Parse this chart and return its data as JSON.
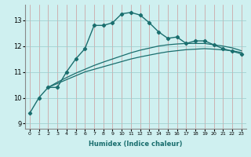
{
  "xlabel": "Humidex (Indice chaleur)",
  "ylabel": "",
  "background_color": "#cff0f0",
  "grid_color": "#99cccc",
  "line_color": "#1a6e6e",
  "xlim": [
    -0.5,
    23.5
  ],
  "ylim": [
    8.8,
    13.6
  ],
  "yticks": [
    9,
    10,
    11,
    12,
    13
  ],
  "xticks": [
    0,
    1,
    2,
    3,
    4,
    5,
    6,
    7,
    8,
    9,
    10,
    11,
    12,
    13,
    14,
    15,
    16,
    17,
    18,
    19,
    20,
    21,
    22,
    23
  ],
  "series1_x": [
    0,
    1,
    2,
    3,
    4,
    5,
    6,
    7,
    8,
    9,
    10,
    11,
    12,
    13,
    14,
    15,
    16,
    17,
    18,
    19,
    20,
    21,
    22,
    23
  ],
  "series1_y": [
    9.4,
    10.0,
    10.4,
    10.4,
    11.0,
    11.5,
    11.9,
    12.8,
    12.8,
    12.9,
    13.25,
    13.3,
    13.2,
    12.9,
    12.55,
    12.3,
    12.35,
    12.1,
    12.2,
    12.2,
    12.05,
    11.9,
    11.8,
    11.7
  ],
  "series2_x": [
    2,
    3,
    4,
    5,
    6,
    7,
    8,
    9,
    10,
    11,
    12,
    13,
    14,
    15,
    16,
    17,
    18,
    19,
    20,
    21,
    22,
    23
  ],
  "series2_y": [
    10.4,
    10.55,
    10.7,
    10.85,
    11.0,
    11.1,
    11.2,
    11.3,
    11.4,
    11.5,
    11.58,
    11.65,
    11.72,
    11.78,
    11.82,
    11.86,
    11.88,
    11.9,
    11.88,
    11.85,
    11.82,
    11.75
  ],
  "series3_x": [
    2,
    3,
    4,
    5,
    6,
    7,
    8,
    9,
    10,
    11,
    12,
    13,
    14,
    15,
    16,
    17,
    18,
    19,
    20,
    21,
    22,
    23
  ],
  "series3_y": [
    10.4,
    10.6,
    10.78,
    10.95,
    11.1,
    11.25,
    11.38,
    11.5,
    11.62,
    11.74,
    11.84,
    11.92,
    12.0,
    12.05,
    12.08,
    12.1,
    12.1,
    12.1,
    12.05,
    12.0,
    11.93,
    11.82
  ]
}
